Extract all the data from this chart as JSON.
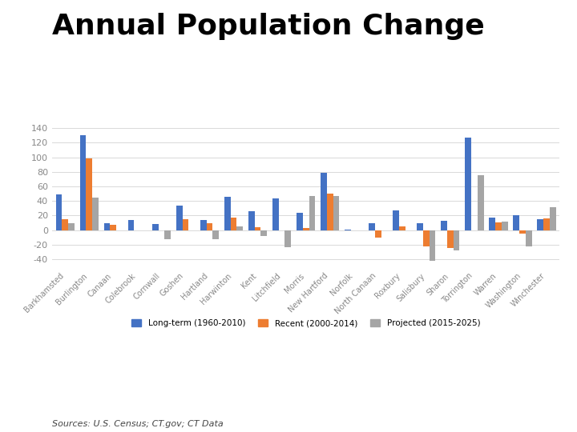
{
  "title": "Annual Population Change",
  "categories": [
    "Barkhamsted",
    "Burlington",
    "Canaan",
    "Colebrook",
    "Cornwall",
    "Goshen",
    "Hartland",
    "Harwinton",
    "Kent",
    "Litchfield",
    "Morris",
    "New Hartford",
    "Norfolk",
    "North Canaan",
    "Roxbury",
    "Salisbury",
    "Sharon",
    "Torrington",
    "Warren",
    "Washington",
    "Winchester"
  ],
  "longterm": [
    49,
    130,
    9,
    14,
    8,
    34,
    14,
    46,
    26,
    44,
    24,
    79,
    1,
    9,
    27,
    9,
    13,
    127,
    17,
    20,
    15
  ],
  "recent": [
    15,
    98,
    7,
    0,
    0,
    15,
    9,
    17,
    4,
    -1,
    3,
    50,
    0,
    -10,
    5,
    -22,
    -25,
    -1,
    11,
    -5,
    16
  ],
  "projected": [
    9,
    45,
    -1,
    -1,
    -13,
    -1,
    -13,
    5,
    -8,
    -24,
    47,
    47,
    -1,
    -1,
    -1,
    -42,
    -28,
    75,
    12,
    -22,
    31
  ],
  "colors": {
    "longterm": "#4472C4",
    "recent": "#ED7D31",
    "projected": "#A5A5A5"
  },
  "legend_labels": [
    "Long-term (1960-2010)",
    "Recent (2000-2014)",
    "Projected (2015-2025)"
  ],
  "yticks": [
    -40,
    -20,
    0,
    20,
    40,
    60,
    80,
    100,
    120,
    140
  ],
  "sources": "Sources: U.S. Census; CT.gov; CT Data",
  "bg": "#FFFFFF",
  "grid_color": "#D9D9D9",
  "title_fontsize": 26,
  "tick_fontsize": 7,
  "ytick_fontsize": 8,
  "bar_width": 0.26
}
